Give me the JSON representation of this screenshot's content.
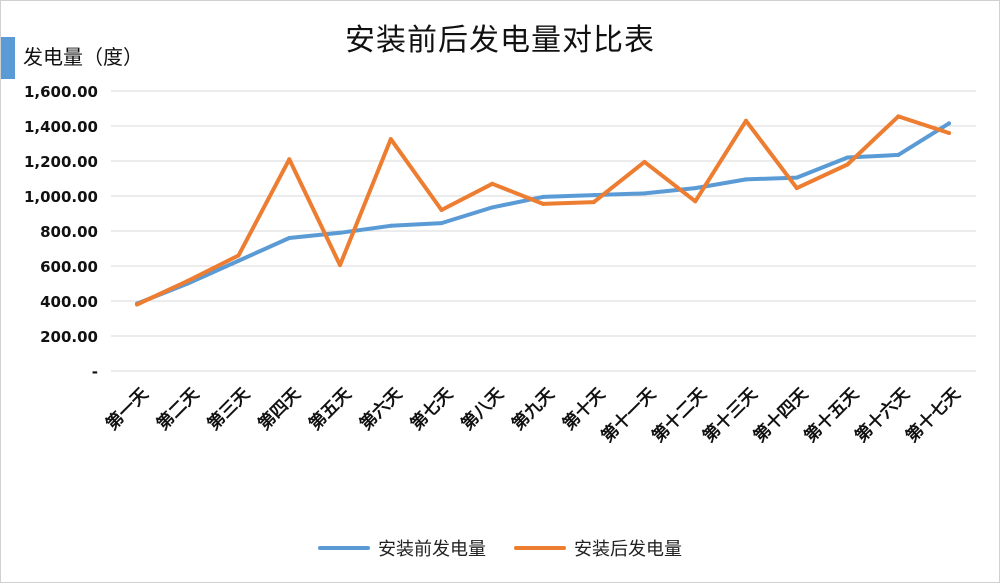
{
  "chart_data": {
    "type": "line",
    "title": "安装前后发电量对比表",
    "ylabel": "发电量（度）",
    "xlabel": "",
    "ylim": [
      0,
      1600
    ],
    "yticks": [
      0,
      200,
      400,
      600,
      800,
      1000,
      1200,
      1400,
      1600
    ],
    "ytick_labels": [
      "-",
      "200.00",
      "400.00",
      "600.00",
      "800.00",
      "1,000.00",
      "1,200.00",
      "1,400.00",
      "1,600.00"
    ],
    "categories": [
      "第一天",
      "第二天",
      "第三天",
      "第四天",
      "第五天",
      "第六天",
      "第七天",
      "第八天",
      "第九天",
      "第十天",
      "第十一天",
      "第十二天",
      "第十三天",
      "第十四天",
      "第十五天",
      "第十六天",
      "第十七天"
    ],
    "grid": true,
    "legend_position": "bottom",
    "series": [
      {
        "name": "安装前发电量",
        "color": "#5b9bd5",
        "values": [
          385,
          500,
          630,
          760,
          790,
          830,
          845,
          935,
          995,
          1005,
          1015,
          1045,
          1095,
          1105,
          1220,
          1235,
          1415
        ]
      },
      {
        "name": "安装后发电量",
        "color": "#ed7d31",
        "values": [
          380,
          515,
          660,
          1210,
          605,
          1325,
          920,
          1070,
          955,
          965,
          1195,
          970,
          1430,
          1045,
          1180,
          1455,
          1360
        ]
      }
    ]
  }
}
